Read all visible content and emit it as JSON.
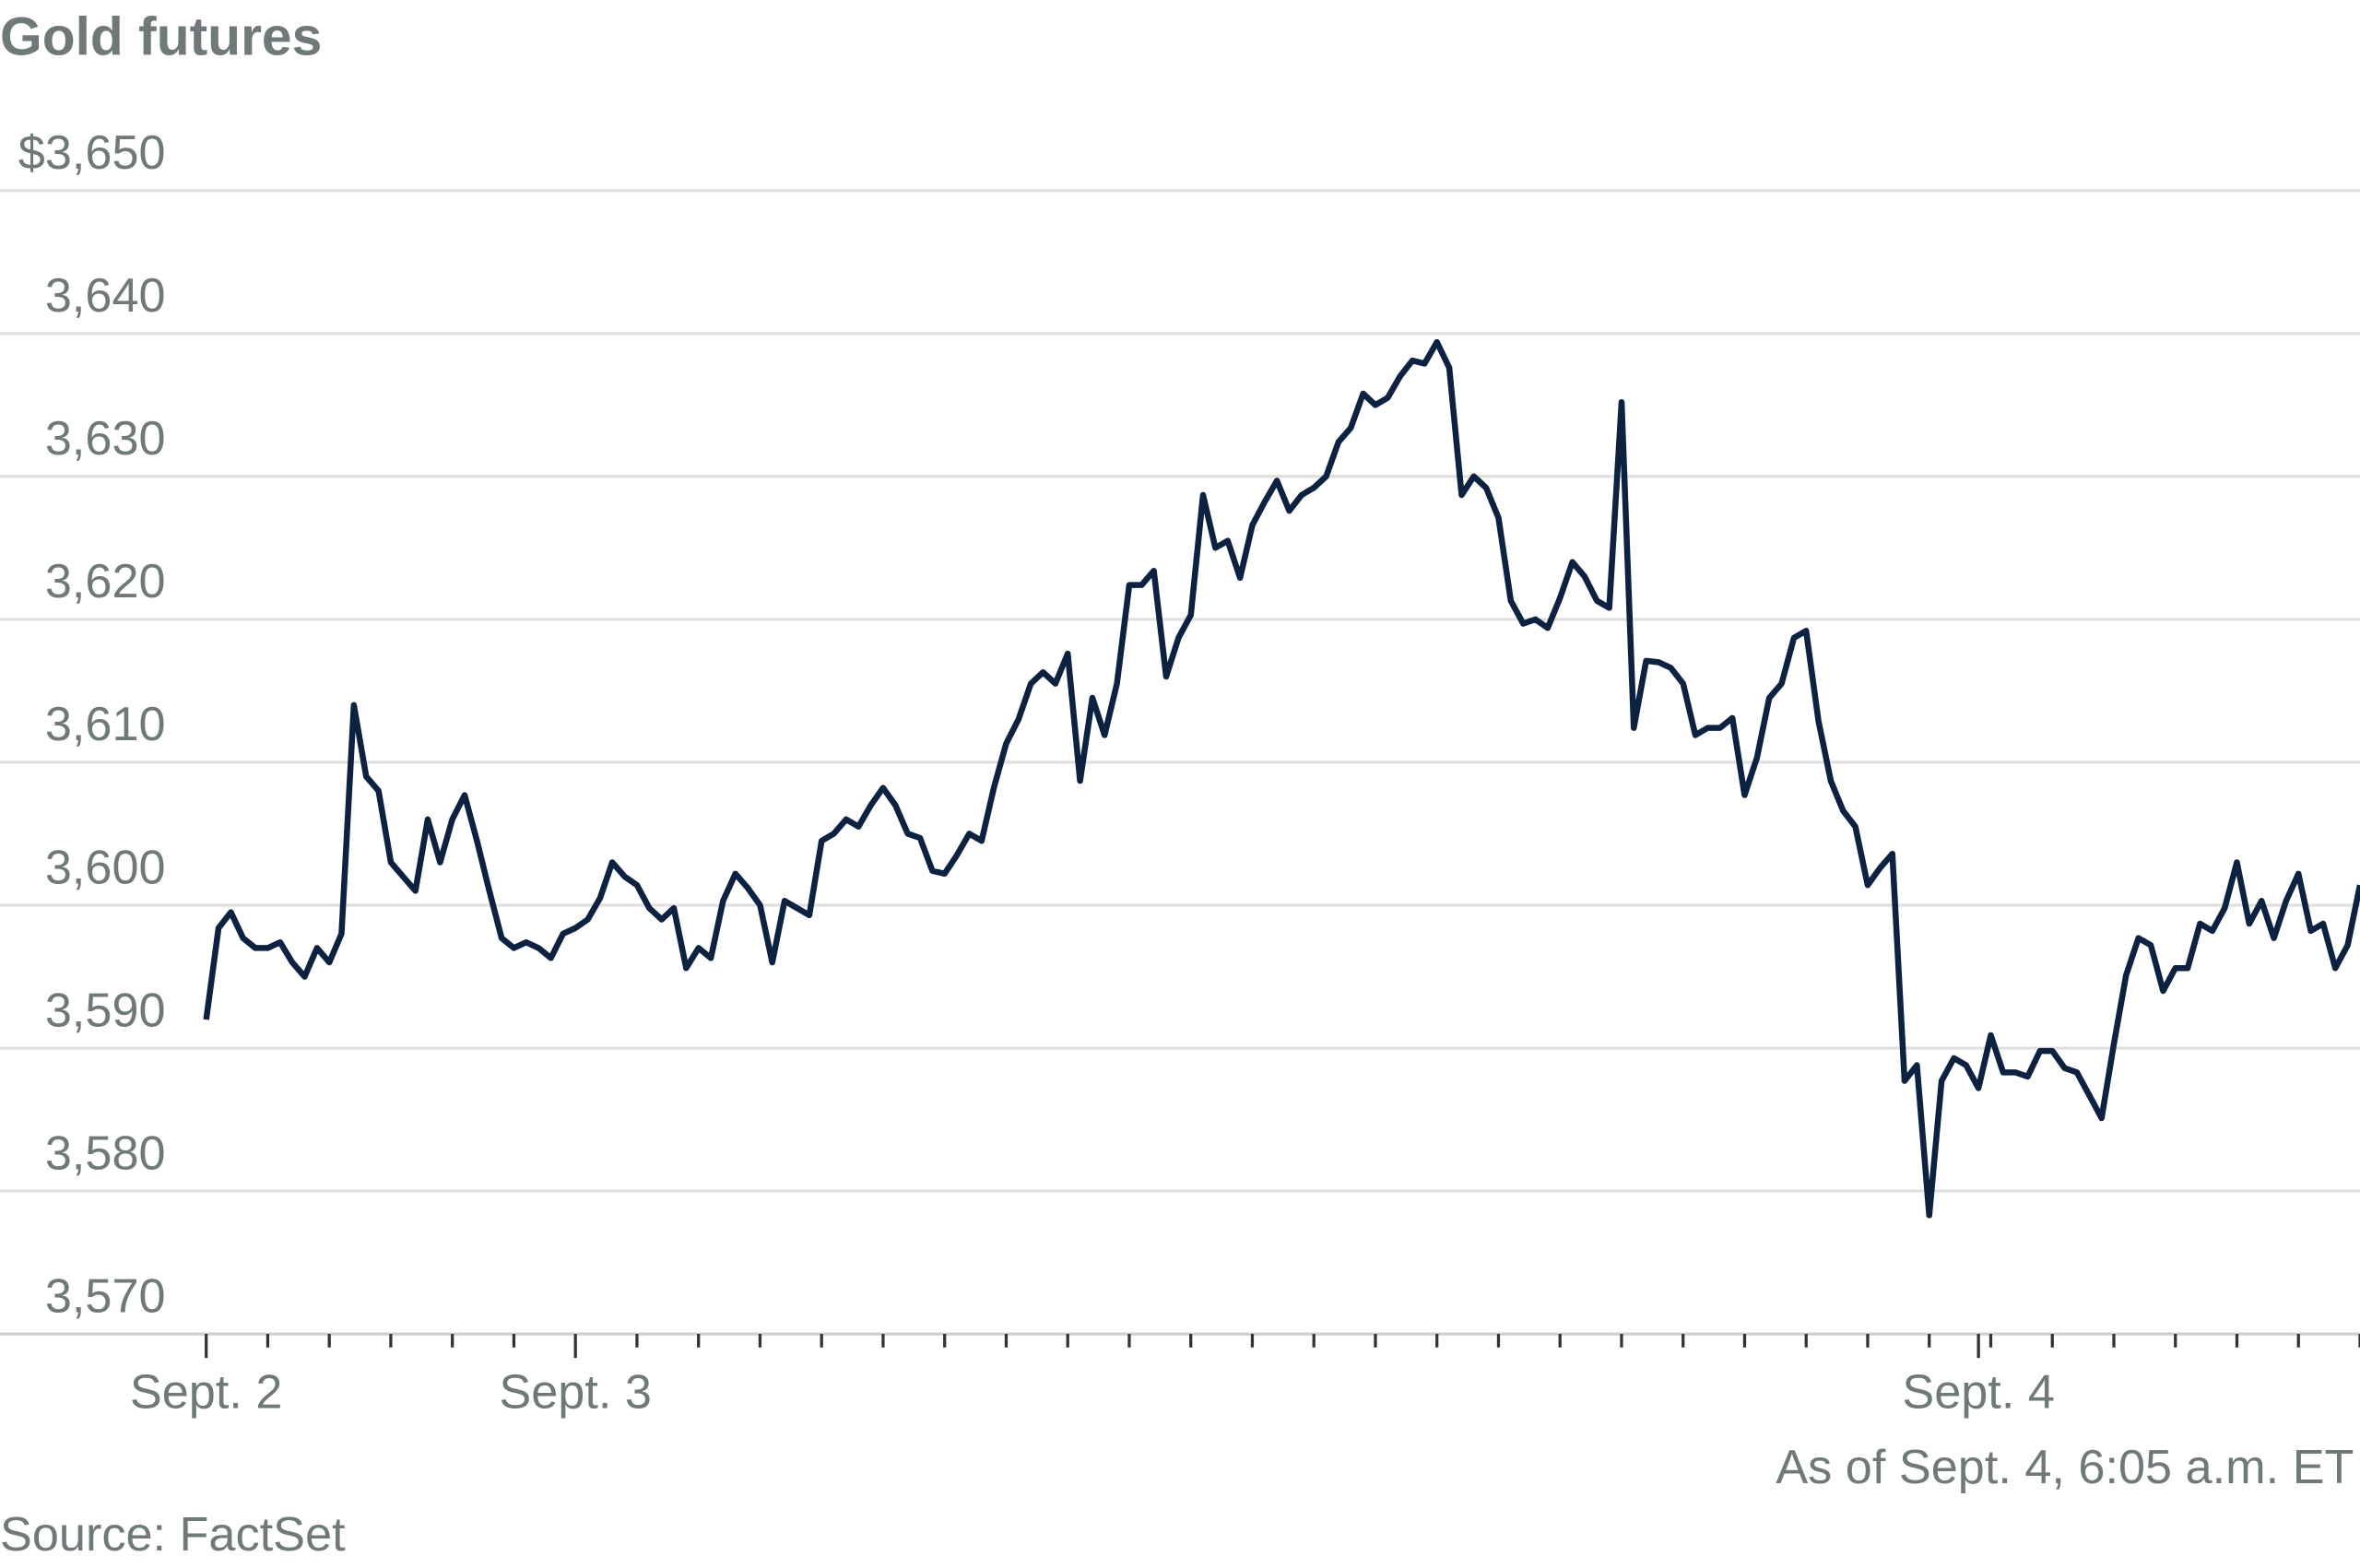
{
  "chart_data": {
    "type": "line",
    "title": "Gold futures",
    "note": "As of Sept. 4, 6:05 a.m. ET",
    "source": "Source: FactSet",
    "categories": [
      "Sept. 2",
      null,
      null,
      null,
      null,
      null,
      null,
      null,
      null,
      null,
      null,
      null,
      null,
      null,
      null,
      null,
      null,
      null,
      null,
      null,
      null,
      null,
      null,
      null,
      null,
      null,
      null,
      null,
      null,
      null,
      "Sept. 3",
      null,
      null,
      null,
      null,
      null,
      null,
      null,
      null,
      null,
      null,
      null,
      null,
      null,
      null,
      null,
      null,
      null,
      null,
      null,
      null,
      null,
      null,
      null,
      null,
      null,
      null,
      null,
      null,
      null,
      null,
      null,
      null,
      null,
      null,
      null,
      null,
      null,
      null,
      null,
      null,
      null,
      null,
      null,
      null,
      null,
      null,
      null,
      null,
      null,
      null,
      null,
      null,
      null,
      null,
      null,
      null,
      null,
      null,
      null,
      null,
      null,
      null,
      null,
      null,
      null,
      null,
      null,
      null,
      null,
      null,
      null,
      null,
      null,
      null,
      null,
      null,
      null,
      null,
      null,
      null,
      null,
      null,
      null,
      null,
      null,
      null,
      null,
      null,
      null,
      null,
      null,
      null,
      null,
      null,
      null,
      null,
      null,
      null,
      null,
      null,
      null,
      null,
      null,
      null,
      null,
      null,
      null,
      null,
      null,
      null,
      null,
      null,
      null,
      "Sept. 4",
      null,
      null,
      null,
      null,
      null,
      null,
      null,
      null,
      null,
      null,
      null,
      null,
      null,
      null,
      null,
      null,
      null,
      null,
      null,
      null,
      null,
      null,
      null,
      null,
      null,
      null,
      null,
      null,
      null,
      null,
      null
    ],
    "series": [
      {
        "name": "Gold futures",
        "color": "#0d2240",
        "values": [
          3592,
          3598.4,
          3599.5,
          3597.7,
          3597,
          3597,
          3597.4,
          3596,
          3595,
          3597,
          3596,
          3598,
          3614,
          3609,
          3608,
          3603,
          3602,
          3601,
          3606,
          3603,
          3606,
          3607.7,
          3604.5,
          3601,
          3597.7,
          3597,
          3597.4,
          3597,
          3596.3,
          3598,
          3598.4,
          3599,
          3600.5,
          3603,
          3602,
          3601.4,
          3599.8,
          3599,
          3599.8,
          3595.6,
          3597,
          3596.3,
          3600.3,
          3602.2,
          3601.2,
          3600,
          3596,
          3600.3,
          3599.8,
          3599.3,
          3604.5,
          3605,
          3606,
          3605.5,
          3607,
          3608.2,
          3607,
          3605,
          3604.7,
          3602.4,
          3602.2,
          3603.5,
          3605,
          3604.5,
          3608.2,
          3611.3,
          3613,
          3615.5,
          3616.3,
          3615.5,
          3617.6,
          3608.7,
          3614.5,
          3611.9,
          3615.5,
          3622.4,
          3622.4,
          3623.4,
          3616,
          3618.7,
          3620.3,
          3628.7,
          3625,
          3625.5,
          3622.9,
          3626.6,
          3628.2,
          3629.7,
          3627.6,
          3628.7,
          3629.2,
          3630,
          3632.4,
          3633.4,
          3635.8,
          3635,
          3635.5,
          3637,
          3638.1,
          3637.9,
          3639.4,
          3637.6,
          3628.7,
          3630,
          3629.2,
          3627.1,
          3621.3,
          3619.7,
          3620,
          3619.4,
          3621.5,
          3624,
          3623,
          3621.3,
          3620.8,
          3635.2,
          3612.4,
          3617.1,
          3617,
          3616.6,
          3615.5,
          3611.9,
          3612.4,
          3612.4,
          3613.1,
          3607.7,
          3610.3,
          3614.5,
          3615.5,
          3618.7,
          3619.2,
          3612.9,
          3608.7,
          3606.6,
          3605.5,
          3601.4,
          3602.6,
          3603.6,
          3587.7,
          3588.8,
          3578.3,
          3587.7,
          3589.3,
          3588.8,
          3587.2,
          3590.9,
          3588.3,
          3588.3,
          3588,
          3589.8,
          3589.8,
          3588.6,
          3588.3,
          3586.7,
          3585.1,
          3590.3,
          3595.1,
          3597.7,
          3597.2,
          3594,
          3595.6,
          3595.6,
          3598.7,
          3598.2,
          3599.8,
          3603,
          3598.7,
          3600.3,
          3597.7,
          3600.3,
          3602.2,
          3598.2,
          3598.7,
          3595.6,
          3597.2,
          3601.4
        ]
      }
    ],
    "ylim": [
      3570,
      3650
    ],
    "yticks": [
      {
        "value": 3650,
        "label": "$3,650"
      },
      {
        "value": 3640,
        "label": "3,640"
      },
      {
        "value": 3630,
        "label": "3,630"
      },
      {
        "value": 3620,
        "label": "3,620"
      },
      {
        "value": 3610,
        "label": "3,610"
      },
      {
        "value": 3600,
        "label": "3,600"
      },
      {
        "value": 3590,
        "label": "3,590"
      },
      {
        "value": 3580,
        "label": "3,580"
      },
      {
        "value": 3570,
        "label": "3,570"
      }
    ],
    "grid": true
  }
}
